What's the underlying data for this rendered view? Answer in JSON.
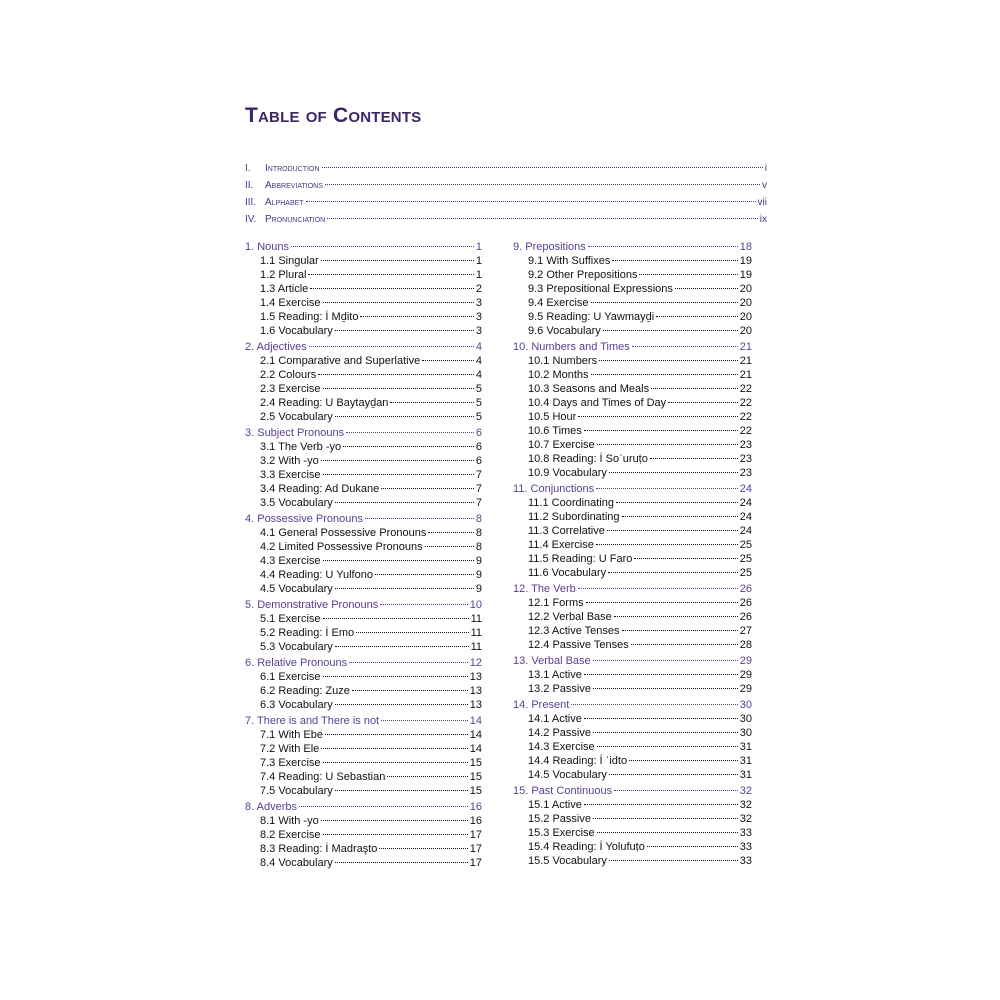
{
  "title": "Table of Contents",
  "front_matter": [
    {
      "num": "I.",
      "label": "Introduction",
      "page": "i"
    },
    {
      "num": "II.",
      "label": "Abbreviations",
      "page": "v"
    },
    {
      "num": "III.",
      "label": "Alphabet",
      "page": "vii"
    },
    {
      "num": "IV.",
      "label": "Pronunciation",
      "page": "ix"
    }
  ],
  "colors": {
    "title": "#3d2566",
    "chapter": "#5a3e91",
    "section": "#111111"
  },
  "left_column": [
    {
      "label": "1. Nouns",
      "page": "1",
      "level": 1
    },
    {
      "label": "1.1 Singular",
      "page": "1",
      "level": 2
    },
    {
      "label": "1.2 Plural",
      "page": "1",
      "level": 2
    },
    {
      "label": "1.3 Article",
      "page": "2",
      "level": 2
    },
    {
      "label": "1.4 Exercise",
      "page": "3",
      "level": 2
    },
    {
      "label": "1.5 Reading: İ Mḏito",
      "page": "3",
      "level": 2
    },
    {
      "label": "1.6 Vocabulary",
      "page": "3",
      "level": 2
    },
    {
      "label": "2. Adjectives",
      "page": "4",
      "level": 1
    },
    {
      "label": "2.1 Comparative and Superlative",
      "page": "4",
      "level": 2
    },
    {
      "label": "2.2 Colours",
      "page": "4",
      "level": 2
    },
    {
      "label": "2.3 Exercise",
      "page": "5",
      "level": 2
    },
    {
      "label": "2.4 Reading: U Baytayḏan",
      "page": "5",
      "level": 2
    },
    {
      "label": "2.5 Vocabulary",
      "page": "5",
      "level": 2
    },
    {
      "label": "3. Subject Pronouns",
      "page": "6",
      "level": 1
    },
    {
      "label": "3.1 The Verb -yo",
      "page": "6",
      "level": 2
    },
    {
      "label": "3.2 With -yo",
      "page": "6",
      "level": 2
    },
    {
      "label": "3.3 Exercise",
      "page": "7",
      "level": 2
    },
    {
      "label": "3.4 Reading: Ad Dukane",
      "page": "7",
      "level": 2
    },
    {
      "label": "3.5 Vocabulary",
      "page": "7",
      "level": 2
    },
    {
      "label": "4. Possessive Pronouns",
      "page": "8",
      "level": 1
    },
    {
      "label": "4.1 General Possessive Pronouns",
      "page": "8",
      "level": 2
    },
    {
      "label": "4.2 Limited Possessive Pronouns",
      "page": "8",
      "level": 2
    },
    {
      "label": "4.3 Exercise",
      "page": "9",
      "level": 2
    },
    {
      "label": "4.4 Reading: U Yulfono",
      "page": "9",
      "level": 2
    },
    {
      "label": "4.5 Vocabulary",
      "page": "9",
      "level": 2
    },
    {
      "label": "5. Demonstrative Pronouns",
      "page": "10",
      "level": 1
    },
    {
      "label": "5.1 Exercise",
      "page": "11",
      "level": 2
    },
    {
      "label": "5.2 Reading: İ Emo",
      "page": "11",
      "level": 2
    },
    {
      "label": "5.3 Vocabulary",
      "page": "11",
      "level": 2
    },
    {
      "label": "6. Relative Pronouns",
      "page": "12",
      "level": 1
    },
    {
      "label": "6.1 Exercise",
      "page": "13",
      "level": 2
    },
    {
      "label": "6.2 Reading: Zuze",
      "page": "13",
      "level": 2
    },
    {
      "label": "6.3 Vocabulary",
      "page": "13",
      "level": 2
    },
    {
      "label": "7. There is and There is not",
      "page": "14",
      "level": 1
    },
    {
      "label": "7.1 With Ebe",
      "page": "14",
      "level": 2
    },
    {
      "label": "7.2 With Ele",
      "page": "14",
      "level": 2
    },
    {
      "label": "7.3 Exercise",
      "page": "15",
      "level": 2
    },
    {
      "label": "7.4 Reading: U Sebastian",
      "page": "15",
      "level": 2
    },
    {
      "label": "7.5 Vocabulary",
      "page": "15",
      "level": 2
    },
    {
      "label": "8. Adverbs",
      "page": "16",
      "level": 1
    },
    {
      "label": "8.1 With -yo",
      "page": "16",
      "level": 2
    },
    {
      "label": "8.2 Exercise",
      "page": "17",
      "level": 2
    },
    {
      "label": "8.3 Reading: İ Madraşto",
      "page": "17",
      "level": 2
    },
    {
      "label": "8.4 Vocabulary",
      "page": "17",
      "level": 2
    }
  ],
  "right_column": [
    {
      "label": "9. Prepositions",
      "page": "18",
      "level": 1
    },
    {
      "label": "9.1 With Suffixes",
      "page": "19",
      "level": 2
    },
    {
      "label": "9.2 Other Prepositions",
      "page": "19",
      "level": 2
    },
    {
      "label": "9.3 Prepositional Expressions",
      "page": "20",
      "level": 2
    },
    {
      "label": "9.4 Exercise",
      "page": "20",
      "level": 2
    },
    {
      "label": "9.5 Reading: U Yawmayḏi",
      "page": "20",
      "level": 2
    },
    {
      "label": "9.6 Vocabulary",
      "page": "20",
      "level": 2
    },
    {
      "label": "10. Numbers and Times",
      "page": "21",
      "level": 1
    },
    {
      "label": "10.1 Numbers",
      "page": "21",
      "level": 2
    },
    {
      "label": "10.2 Months",
      "page": "21",
      "level": 2
    },
    {
      "label": "10.3 Seasons and Meals",
      "page": "22",
      "level": 2
    },
    {
      "label": "10.4 Days and Times of Day",
      "page": "22",
      "level": 2
    },
    {
      "label": "10.5 Hour",
      "page": "22",
      "level": 2
    },
    {
      "label": "10.6 Times",
      "page": "22",
      "level": 2
    },
    {
      "label": "10.7 Exercise",
      "page": "23",
      "level": 2
    },
    {
      "label": "10.8 Reading: İ Soʿuruṭo",
      "page": "23",
      "level": 2
    },
    {
      "label": "10.9 Vocabulary",
      "page": "23",
      "level": 2
    },
    {
      "label": "11. Conjunctions",
      "page": "24",
      "level": 1
    },
    {
      "label": "11.1 Coordinating",
      "page": "24",
      "level": 2
    },
    {
      "label": "11.2 Subordinating",
      "page": "24",
      "level": 2
    },
    {
      "label": "11.3 Correlative",
      "page": "24",
      "level": 2
    },
    {
      "label": "11.4 Exercise",
      "page": "25",
      "level": 2
    },
    {
      "label": "11.5 Reading: U Faro",
      "page": "25",
      "level": 2
    },
    {
      "label": "11.6 Vocabulary",
      "page": "25",
      "level": 2
    },
    {
      "label": "12. The Verb",
      "page": "26",
      "level": 1
    },
    {
      "label": "12.1 Forms",
      "page": "26",
      "level": 2
    },
    {
      "label": "12.2 Verbal Base",
      "page": "26",
      "level": 2
    },
    {
      "label": "12.3 Active Tenses",
      "page": "27",
      "level": 2
    },
    {
      "label": "12.4 Passive Tenses",
      "page": "28",
      "level": 2
    },
    {
      "label": "13. Verbal Base",
      "page": "29",
      "level": 1
    },
    {
      "label": "13.1 Active",
      "page": "29",
      "level": 2
    },
    {
      "label": "13.2 Passive",
      "page": "29",
      "level": 2
    },
    {
      "label": "14. Present",
      "page": "30",
      "level": 1
    },
    {
      "label": "14.1 Active",
      "page": "30",
      "level": 2
    },
    {
      "label": "14.2 Passive",
      "page": "30",
      "level": 2
    },
    {
      "label": "14.3 Exercise",
      "page": "31",
      "level": 2
    },
    {
      "label": "14.4 Reading: İ ʿidto",
      "page": "31",
      "level": 2
    },
    {
      "label": "14.5 Vocabulary",
      "page": "31",
      "level": 2
    },
    {
      "label": "15. Past Continuous",
      "page": "32",
      "level": 1
    },
    {
      "label": "15.1 Active",
      "page": "32",
      "level": 2
    },
    {
      "label": "15.2 Passive",
      "page": "32",
      "level": 2
    },
    {
      "label": "15.3 Exercise",
      "page": "33",
      "level": 2
    },
    {
      "label": "15.4 Reading: İ Yolufuṭo",
      "page": "33",
      "level": 2
    },
    {
      "label": "15.5 Vocabulary",
      "page": "33",
      "level": 2
    }
  ]
}
